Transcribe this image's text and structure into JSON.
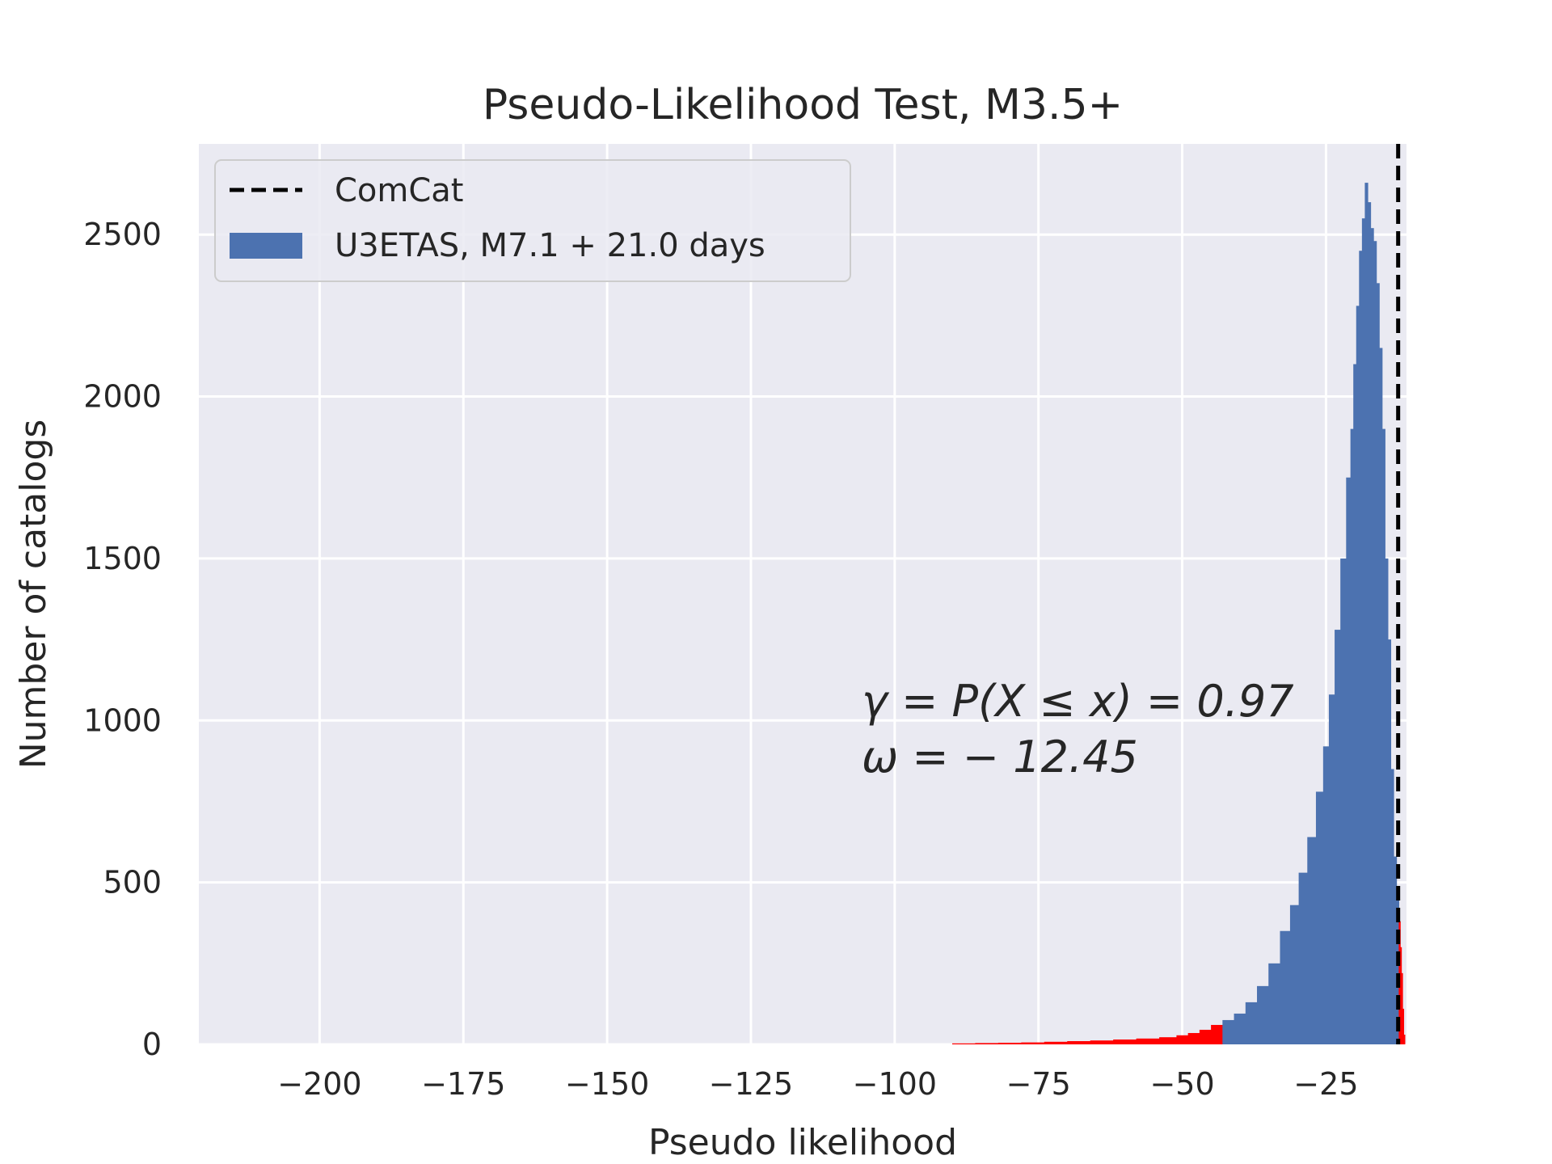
{
  "chart_data": {
    "type": "bar",
    "title": "Pseudo-Likelihood Test, M3.5+",
    "xlabel": "Pseudo likelihood",
    "ylabel": "Number of catalogs",
    "xlim": [
      -221,
      -11
    ],
    "ylim": [
      0,
      2780
    ],
    "x_ticks": [
      -200,
      -175,
      -150,
      -125,
      -100,
      -75,
      -50,
      -25
    ],
    "x_tick_labels": [
      "−200",
      "−175",
      "−150",
      "−125",
      "−100",
      "−75",
      "−50",
      "−25"
    ],
    "y_ticks": [
      0,
      500,
      1000,
      1500,
      2000,
      2500
    ],
    "y_tick_labels": [
      "0",
      "500",
      "1000",
      "1500",
      "2000",
      "2500"
    ],
    "grid": true,
    "legend_position": "upper-left",
    "colors": {
      "histogram": "#4c72b0",
      "tail": "#ff0000",
      "observed": "#000000",
      "plot_background": "#eaeaf2",
      "grid": "#ffffff"
    },
    "series": [
      {
        "name": "U3ETAS, M7.1 + 21.0 days",
        "kind": "histogram",
        "x": [
          -88,
          -84,
          -80,
          -76,
          -72,
          -68,
          -64,
          -60,
          -56,
          -52,
          -50,
          -48,
          -46,
          -44,
          -42,
          -40,
          -38,
          -36,
          -34,
          -32,
          -30.5,
          -29,
          -27.5,
          -26,
          -25,
          -24,
          -23,
          -22,
          -21,
          -20.5,
          -20,
          -19.5,
          -19,
          -18.5,
          -18,
          -17.5,
          -17,
          -16.5,
          -16,
          -15.5,
          -15,
          -14.5,
          -14,
          -13.5,
          -13,
          -12.5,
          -12.2,
          -12,
          -11.8,
          -11.6,
          -11.4
        ],
        "values": [
          3,
          4,
          5,
          6,
          8,
          10,
          12,
          15,
          18,
          22,
          28,
          35,
          45,
          60,
          75,
          95,
          130,
          180,
          250,
          350,
          430,
          530,
          640,
          780,
          920,
          1080,
          1280,
          1500,
          1750,
          1900,
          2100,
          2280,
          2450,
          2550,
          2660,
          2600,
          2520,
          2480,
          2350,
          2150,
          1900,
          1500,
          1250,
          850,
          580,
          460,
          380,
          300,
          220,
          110,
          30
        ]
      },
      {
        "name": "ComCat",
        "kind": "vline",
        "x": -12.45
      }
    ],
    "tail_ranges": [
      [
        -88,
        -43
      ],
      [
        -12.45,
        -11
      ]
    ],
    "annotations": [
      "γ = P(X ≤ x) = 0.97",
      "ω = − 12.45"
    ]
  }
}
